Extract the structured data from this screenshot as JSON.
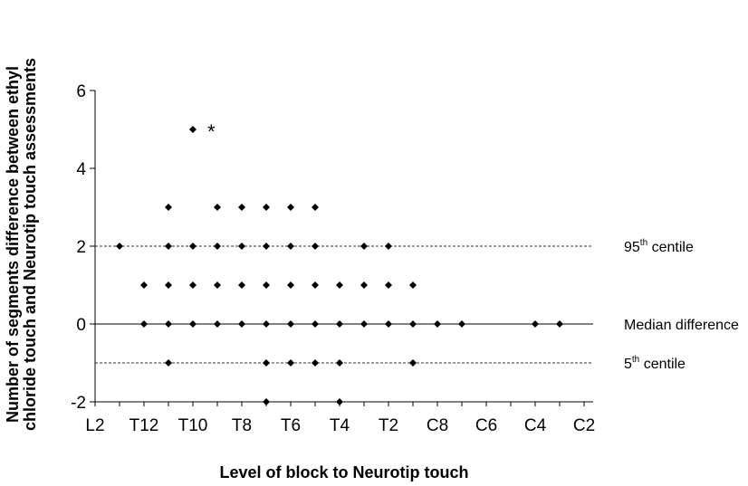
{
  "chart_data": {
    "type": "scatter",
    "title": "",
    "xlabel": "Level of block to Neurotip touch",
    "ylabel_lines": [
      "Number of segments difference between ethyl",
      "chloride touch and Neurotip touch assessments"
    ],
    "ylim": [
      -2,
      6
    ],
    "y_ticks": [
      "-2",
      "0",
      "2",
      "4",
      "6"
    ],
    "x_levels": [
      "L2",
      "L1",
      "T12",
      "T11",
      "T10",
      "T9",
      "T8",
      "T7",
      "T6",
      "T5",
      "T4",
      "T3",
      "T2",
      "T1",
      "C8",
      "C7",
      "C6",
      "C5",
      "C4",
      "C3",
      "C2"
    ],
    "x_tick_labels": [
      "L2",
      "T12",
      "T10",
      "T8",
      "T6",
      "T4",
      "T2",
      "C8",
      "C6",
      "C4",
      "C2"
    ],
    "reference_lines": [
      {
        "name": "95th centile",
        "base": "95",
        "sup": "th",
        "rest": " centile",
        "y": 2,
        "style": "dashed"
      },
      {
        "name": "Median difference",
        "base": "Median difference",
        "sup": "",
        "rest": "",
        "y": 0,
        "style": "solid"
      },
      {
        "name": "5th centile",
        "base": "5",
        "sup": "th",
        "rest": "  centile",
        "y": -1,
        "style": "dashed"
      }
    ],
    "points": [
      {
        "x": "L1",
        "y": 2
      },
      {
        "x": "T12",
        "y": 1
      },
      {
        "x": "T12",
        "y": 0
      },
      {
        "x": "T11",
        "y": 3
      },
      {
        "x": "T11",
        "y": 2
      },
      {
        "x": "T11",
        "y": 1
      },
      {
        "x": "T11",
        "y": 0
      },
      {
        "x": "T11",
        "y": -1
      },
      {
        "x": "T10",
        "y": 5
      },
      {
        "x": "T10",
        "y": 2
      },
      {
        "x": "T10",
        "y": 1
      },
      {
        "x": "T10",
        "y": 0
      },
      {
        "x": "T9",
        "y": 3
      },
      {
        "x": "T9",
        "y": 2
      },
      {
        "x": "T9",
        "y": 1
      },
      {
        "x": "T9",
        "y": 0
      },
      {
        "x": "T8",
        "y": 3
      },
      {
        "x": "T8",
        "y": 2
      },
      {
        "x": "T8",
        "y": 1
      },
      {
        "x": "T8",
        "y": 0
      },
      {
        "x": "T7",
        "y": 3
      },
      {
        "x": "T7",
        "y": 2
      },
      {
        "x": "T7",
        "y": 1
      },
      {
        "x": "T7",
        "y": 0
      },
      {
        "x": "T7",
        "y": -1
      },
      {
        "x": "T7",
        "y": -2
      },
      {
        "x": "T6",
        "y": 3
      },
      {
        "x": "T6",
        "y": 2
      },
      {
        "x": "T6",
        "y": 1
      },
      {
        "x": "T6",
        "y": 0
      },
      {
        "x": "T6",
        "y": -1
      },
      {
        "x": "T5",
        "y": 3
      },
      {
        "x": "T5",
        "y": 2
      },
      {
        "x": "T5",
        "y": 1
      },
      {
        "x": "T5",
        "y": 0
      },
      {
        "x": "T5",
        "y": -1
      },
      {
        "x": "T4",
        "y": 1
      },
      {
        "x": "T4",
        "y": 0
      },
      {
        "x": "T4",
        "y": -1
      },
      {
        "x": "T4",
        "y": -2
      },
      {
        "x": "T3",
        "y": 2
      },
      {
        "x": "T3",
        "y": 1
      },
      {
        "x": "T3",
        "y": 0
      },
      {
        "x": "T2",
        "y": 2
      },
      {
        "x": "T2",
        "y": 1
      },
      {
        "x": "T2",
        "y": 0
      },
      {
        "x": "T1",
        "y": 1
      },
      {
        "x": "T1",
        "y": 0
      },
      {
        "x": "T1",
        "y": -1
      },
      {
        "x": "C8",
        "y": 0
      },
      {
        "x": "C7",
        "y": 0
      },
      {
        "x": "C4",
        "y": 0
      },
      {
        "x": "C3",
        "y": 0
      }
    ],
    "annotations": [
      {
        "text": "*",
        "x": "T10",
        "y": 5
      }
    ],
    "grid": false,
    "legend": "none"
  }
}
